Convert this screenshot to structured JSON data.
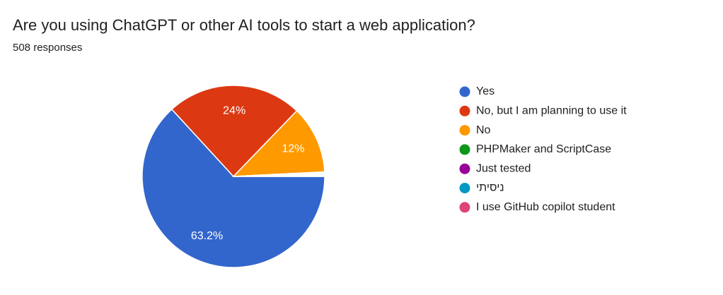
{
  "chart_data": {
    "type": "pie",
    "title": "Are you using ChatGPT or other AI tools to start a web application?",
    "subtitle": "508 responses",
    "categories": [
      "Yes",
      "No, but I am planning to use it",
      "No",
      "PHPMaker and ScriptCase",
      "Just tested",
      "ניסיתי",
      "I use GitHub copilot student"
    ],
    "values": [
      63.2,
      24,
      12,
      0.2,
      0.2,
      0.2,
      0.2
    ],
    "value_labels": [
      "63.2%",
      "24%",
      "12%",
      null,
      null,
      null,
      null
    ],
    "colors": [
      "#3366cc",
      "#dc3912",
      "#ff9900",
      "#109618",
      "#990099",
      "#0099c6",
      "#dd4477"
    ],
    "legend": "right"
  }
}
